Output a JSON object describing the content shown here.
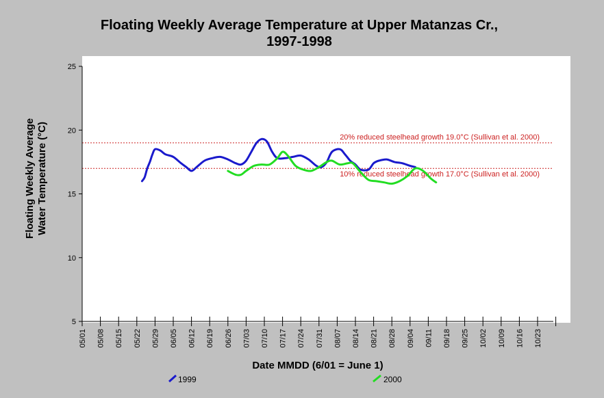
{
  "colors": {
    "background": "#c0c0c0",
    "plot_area": "#ffffff",
    "reference_line": "#cc2020",
    "series_1999": "#1a1acc",
    "series_2000": "#22dd22"
  },
  "chart_data": {
    "type": "line",
    "title_line1": "Floating Weekly Average Temperature at Upper Matanzas Cr.,",
    "title_line2": "1997-1998",
    "xlabel": "Date MMDD (6/01 = June 1)",
    "ylabel_line1": "Floating Weekly Average",
    "ylabel_line2": "Water Temperature (°C)",
    "xlim": [
      "05/01",
      "10/30"
    ],
    "ylim": [
      5,
      25
    ],
    "x_ticks": [
      "05/01",
      "05/08",
      "05/15",
      "05/22",
      "05/29",
      "06/05",
      "06/12",
      "06/19",
      "06/26",
      "07/03",
      "07/10",
      "07/17",
      "07/24",
      "07/31",
      "08/07",
      "08/14",
      "08/21",
      "08/28",
      "09/04",
      "09/11",
      "09/18",
      "09/25",
      "10/02",
      "10/09",
      "10/16",
      "10/23"
    ],
    "y_ticks": [
      "5",
      "10",
      "15",
      "20",
      "25"
    ],
    "grid": false,
    "legend_position": "bottom",
    "reference_lines": [
      {
        "value": 19.0,
        "label": "20% reduced steelhead growth 19.0°C (Sullivan et al. 2000)"
      },
      {
        "value": 17.0,
        "label": "10% reduced steelhead growth 17.0°C (Sullivan et al. 2000)"
      }
    ],
    "series": [
      {
        "name": "1999",
        "color": "#1a1acc",
        "points": [
          [
            "05/24",
            16.0
          ],
          [
            "05/25",
            16.3
          ],
          [
            "05/26",
            17.0
          ],
          [
            "05/27",
            17.5
          ],
          [
            "05/28",
            18.1
          ],
          [
            "05/29",
            18.5
          ],
          [
            "05/31",
            18.4
          ],
          [
            "06/02",
            18.1
          ],
          [
            "06/05",
            17.9
          ],
          [
            "06/08",
            17.4
          ],
          [
            "06/10",
            17.1
          ],
          [
            "06/12",
            16.8
          ],
          [
            "06/14",
            17.1
          ],
          [
            "06/17",
            17.6
          ],
          [
            "06/20",
            17.8
          ],
          [
            "06/23",
            17.9
          ],
          [
            "06/26",
            17.7
          ],
          [
            "06/29",
            17.4
          ],
          [
            "07/01",
            17.3
          ],
          [
            "07/03",
            17.6
          ],
          [
            "07/05",
            18.3
          ],
          [
            "07/07",
            19.0
          ],
          [
            "07/09",
            19.3
          ],
          [
            "07/11",
            19.1
          ],
          [
            "07/13",
            18.3
          ],
          [
            "07/15",
            17.8
          ],
          [
            "07/18",
            17.8
          ],
          [
            "07/21",
            17.9
          ],
          [
            "07/24",
            18.0
          ],
          [
            "07/27",
            17.7
          ],
          [
            "07/30",
            17.2
          ],
          [
            "08/01",
            17.1
          ],
          [
            "08/03",
            17.5
          ],
          [
            "08/05",
            18.3
          ],
          [
            "08/08",
            18.5
          ],
          [
            "08/10",
            18.1
          ],
          [
            "08/12",
            17.6
          ],
          [
            "08/14",
            17.3
          ],
          [
            "08/16",
            16.9
          ],
          [
            "08/19",
            16.9
          ],
          [
            "08/21",
            17.4
          ],
          [
            "08/23",
            17.6
          ],
          [
            "08/26",
            17.7
          ],
          [
            "08/29",
            17.5
          ],
          [
            "09/01",
            17.4
          ],
          [
            "09/04",
            17.2
          ],
          [
            "09/06",
            17.1
          ]
        ]
      },
      {
        "name": "2000",
        "color": "#22dd22",
        "points": [
          [
            "06/26",
            16.8
          ],
          [
            "06/29",
            16.5
          ],
          [
            "07/01",
            16.5
          ],
          [
            "07/03",
            16.8
          ],
          [
            "07/06",
            17.2
          ],
          [
            "07/09",
            17.3
          ],
          [
            "07/12",
            17.3
          ],
          [
            "07/15",
            17.8
          ],
          [
            "07/17",
            18.3
          ],
          [
            "07/19",
            18.0
          ],
          [
            "07/22",
            17.2
          ],
          [
            "07/25",
            16.9
          ],
          [
            "07/28",
            16.8
          ],
          [
            "07/31",
            17.1
          ],
          [
            "08/03",
            17.5
          ],
          [
            "08/05",
            17.6
          ],
          [
            "08/08",
            17.3
          ],
          [
            "08/11",
            17.4
          ],
          [
            "08/13",
            17.4
          ],
          [
            "08/16",
            16.7
          ],
          [
            "08/19",
            16.1
          ],
          [
            "08/22",
            16.0
          ],
          [
            "08/25",
            15.9
          ],
          [
            "08/28",
            15.8
          ],
          [
            "08/31",
            16.0
          ],
          [
            "09/03",
            16.4
          ],
          [
            "09/06",
            17.0
          ],
          [
            "09/09",
            16.8
          ],
          [
            "09/12",
            16.2
          ],
          [
            "09/14",
            15.9
          ]
        ]
      }
    ]
  }
}
